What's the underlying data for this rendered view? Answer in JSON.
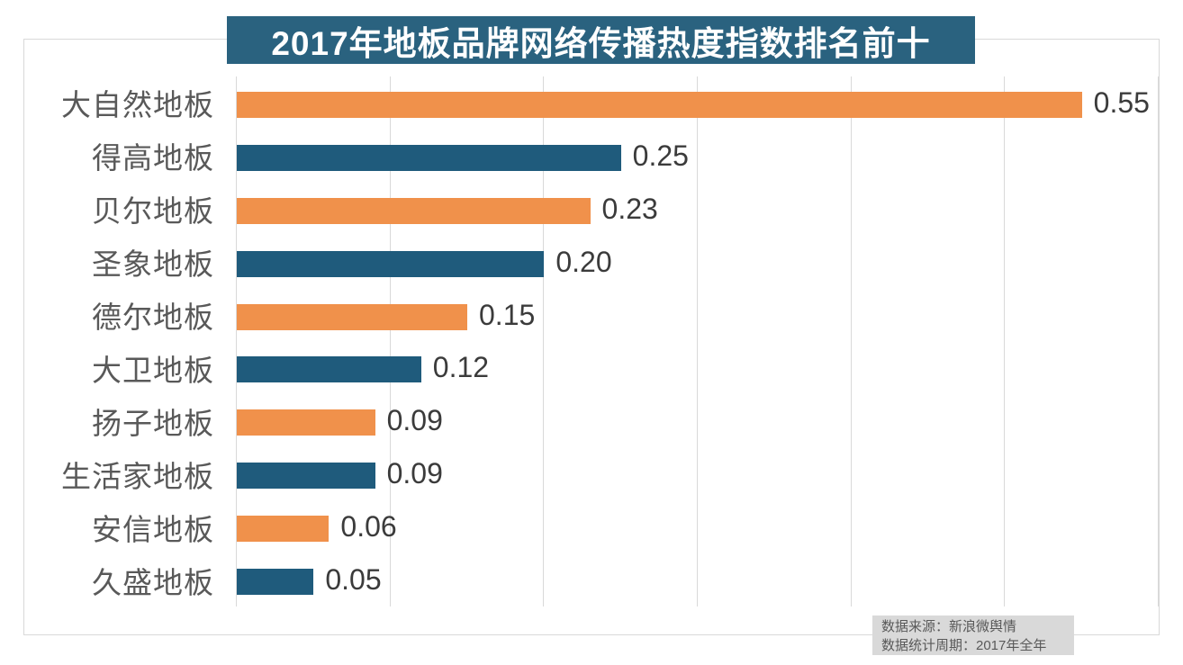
{
  "chart_data": {
    "type": "bar",
    "orientation": "horizontal",
    "title": "2017年地板品牌网络传播热度指数排名前十",
    "categories": [
      "大自然地板",
      "得高地板",
      "贝尔地板",
      "圣象地板",
      "德尔地板",
      "大卫地板",
      "扬子地板",
      "生活家地板",
      "安信地板",
      "久盛地板"
    ],
    "values": [
      0.55,
      0.25,
      0.23,
      0.2,
      0.15,
      0.12,
      0.09,
      0.09,
      0.06,
      0.05
    ],
    "value_labels": [
      "0.55",
      "0.25",
      "0.23",
      "0.20",
      "0.15",
      "0.12",
      "0.09",
      "0.09",
      "0.06",
      "0.05"
    ],
    "xlim": [
      0,
      0.6
    ],
    "grid_step": 0.1,
    "grid": true,
    "legend": false,
    "bar_colors_alternating": [
      "#f0914b",
      "#1f5b7c"
    ],
    "value_label_position": "outside-end"
  },
  "footer": {
    "source": "数据来源：新浪微舆情",
    "period": "数据统计周期：2017年全年"
  },
  "colors": {
    "title_bg": "#2a627f",
    "title_text": "#ffffff",
    "bar_orange": "#f0914b",
    "bar_teal": "#1f5b7c",
    "gridline": "#d9d9d9",
    "frame_border": "#d9d9d9",
    "category_label": "#595959",
    "value_label": "#3b3b3b",
    "footer_bg": "#d9d9d9",
    "footer_text": "#595959"
  }
}
